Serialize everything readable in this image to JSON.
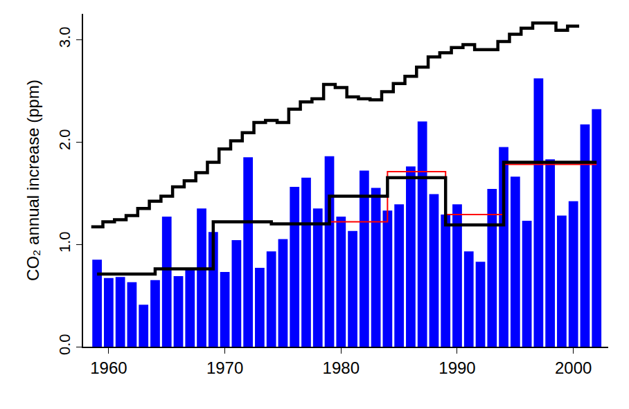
{
  "chart_data": {
    "type": "bar",
    "y_label": "CO₂ annual increase (ppm)",
    "xlim": [
      1957.8,
      2003
    ],
    "xticks": [
      1960,
      1970,
      1980,
      1990,
      2000
    ],
    "ylim": [
      0,
      3.25
    ],
    "yticks": [
      {
        "value": 0,
        "label": "0.0"
      },
      {
        "value": 1,
        "label": "1.0"
      },
      {
        "value": 2,
        "label": "2.0"
      },
      {
        "value": 3,
        "label": "3.0"
      }
    ],
    "grid": false,
    "series": [
      {
        "type": "bar",
        "color": "#0000ff",
        "x": [
          1959,
          1960,
          1961,
          1962,
          1963,
          1964,
          1965,
          1966,
          1967,
          1968,
          1969,
          1970,
          1971,
          1972,
          1973,
          1974,
          1975,
          1976,
          1977,
          1978,
          1979,
          1980,
          1981,
          1982,
          1983,
          1984,
          1985,
          1986,
          1987,
          1988,
          1989,
          1990,
          1991,
          1992,
          1993,
          1994,
          1995,
          1996,
          1997,
          1998,
          1999,
          2000,
          2001,
          2002
        ],
        "values": [
          0.85,
          0.67,
          0.68,
          0.63,
          0.41,
          0.65,
          1.27,
          0.69,
          0.75,
          1.35,
          1.12,
          0.73,
          1.04,
          1.85,
          0.77,
          0.93,
          1.05,
          1.56,
          1.65,
          1.35,
          1.86,
          1.27,
          1.13,
          1.72,
          1.55,
          1.33,
          1.39,
          1.76,
          2.2,
          1.49,
          1.29,
          1.39,
          0.93,
          0.83,
          1.54,
          1.95,
          1.66,
          1.23,
          2.62,
          1.83,
          1.28,
          1.42,
          2.17,
          2.32
        ]
      },
      {
        "type": "line",
        "line_style": "step",
        "color": "#000000",
        "x": [
          1958.5,
          1959.5,
          1960.5,
          1961.5,
          1962.5,
          1963.5,
          1964.5,
          1965.5,
          1966.5,
          1967.5,
          1968.5,
          1969.5,
          1970.5,
          1971.5,
          1972.5,
          1973.5,
          1974.5,
          1975.5,
          1976.5,
          1977.5,
          1978.5,
          1979.5,
          1980.5,
          1981.5,
          1982.5,
          1983.5,
          1984.5,
          1985.5,
          1986.5,
          1987.5,
          1988.5,
          1989.5,
          1990.5,
          1991.5,
          1992.5,
          1993.5,
          1994.5,
          1995.5,
          1996.5,
          1997.5,
          1998.5,
          1999.5,
          2000.5
        ],
        "values": [
          1.17,
          1.22,
          1.24,
          1.28,
          1.35,
          1.42,
          1.47,
          1.56,
          1.62,
          1.7,
          1.8,
          1.93,
          2.01,
          2.09,
          2.19,
          2.21,
          2.19,
          2.32,
          2.39,
          2.42,
          2.56,
          2.53,
          2.44,
          2.42,
          2.41,
          2.49,
          2.57,
          2.64,
          2.73,
          2.83,
          2.87,
          2.92,
          2.95,
          2.9,
          2.9,
          2.98,
          3.05,
          3.11,
          3.16,
          3.16,
          3.09,
          3.13,
          3.13
        ]
      },
      {
        "type": "line",
        "line_style": "step",
        "color": "#ff0000",
        "x": [
          1979,
          1984,
          1989,
          1994,
          2002
        ],
        "values": [
          1.22,
          1.71,
          1.29,
          1.78,
          1.78
        ]
      },
      {
        "type": "line",
        "line_style": "step",
        "color": "#000000",
        "x": [
          1959,
          1964,
          1969,
          1974,
          1979,
          1984,
          1989,
          1994,
          2002
        ],
        "values": [
          0.71,
          0.76,
          1.22,
          1.2,
          1.47,
          1.65,
          1.19,
          1.8,
          1.8
        ]
      }
    ]
  }
}
